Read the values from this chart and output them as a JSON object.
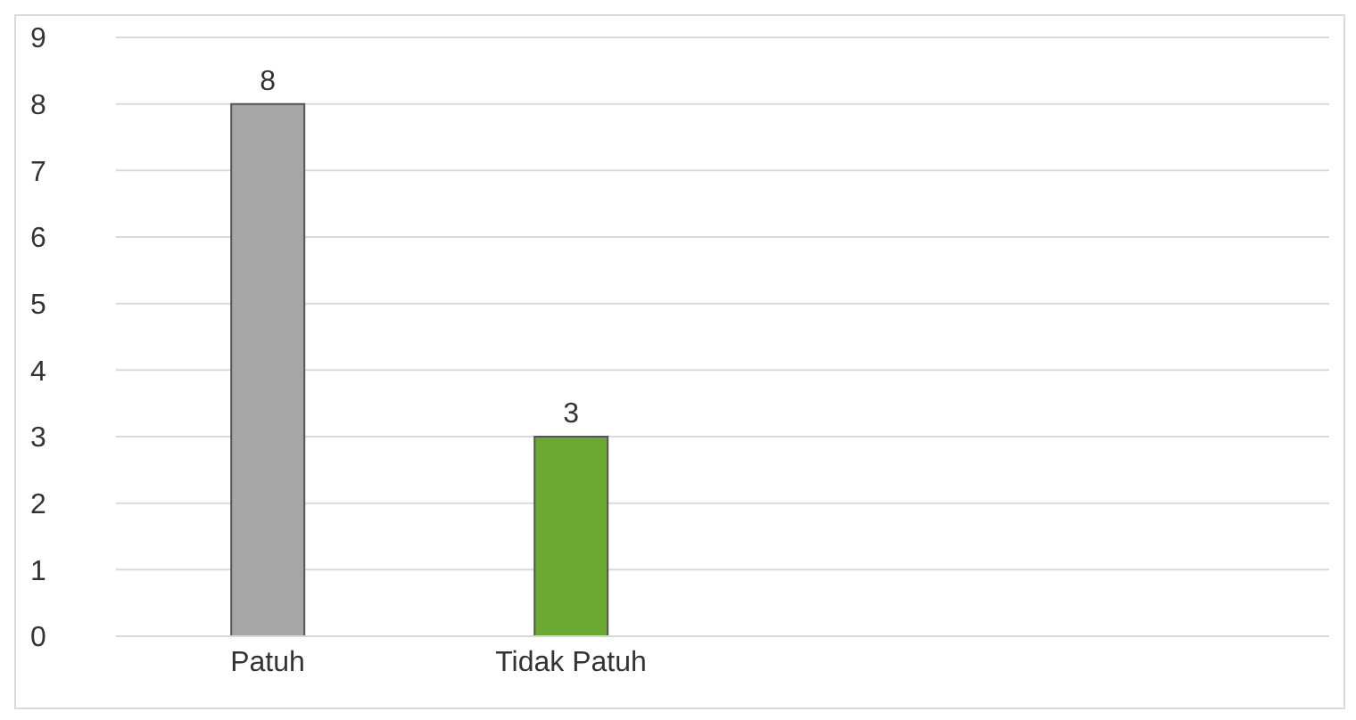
{
  "chart_data": {
    "type": "bar",
    "categories": [
      "Patuh",
      "Tidak Patuh",
      null,
      null
    ],
    "values": [
      8,
      3,
      null,
      null
    ],
    "colors": [
      "#a6a6a6",
      "#6aa832",
      null,
      null
    ],
    "ylim": [
      0,
      9
    ],
    "yticks": [
      0,
      1,
      2,
      3,
      4,
      5,
      6,
      7,
      8,
      9
    ],
    "grid": "y",
    "data_labels": true
  }
}
